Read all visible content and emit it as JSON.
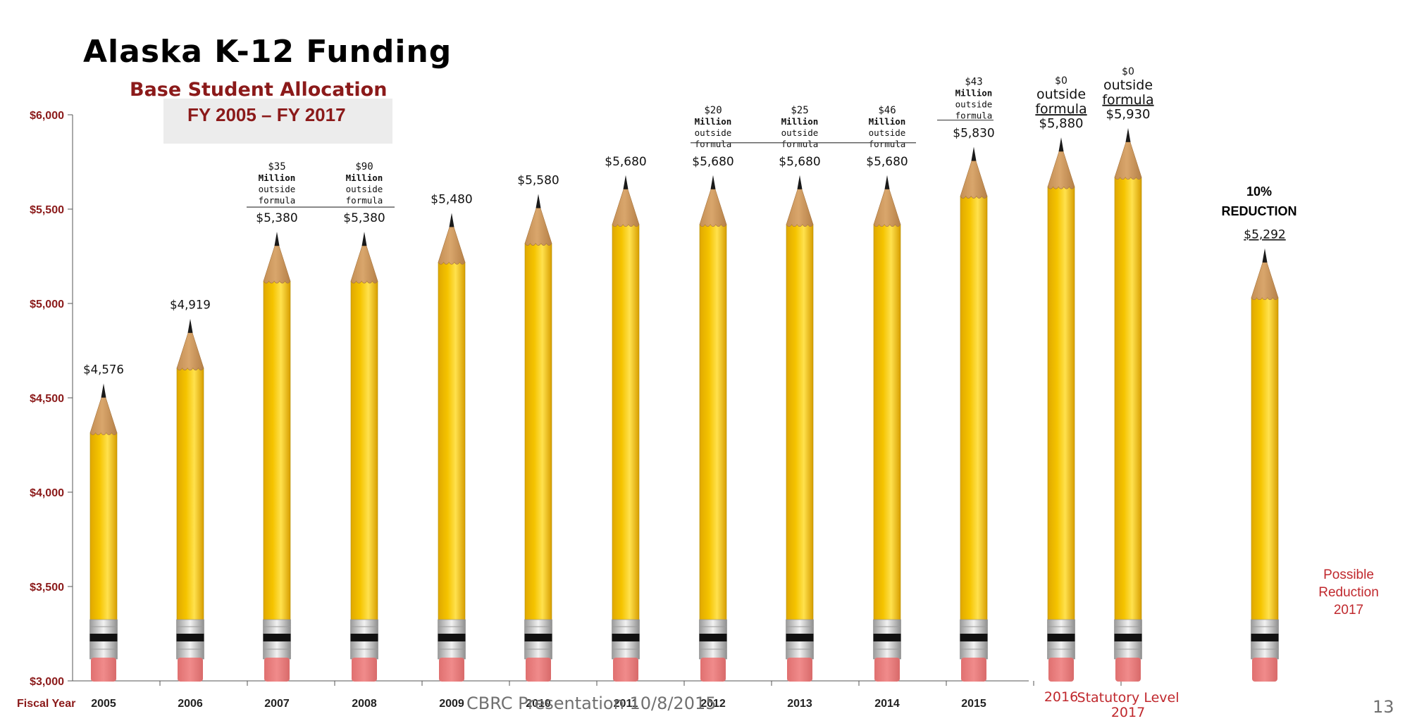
{
  "title": "Alaska K-12 Funding",
  "subtitle": "Base Student Allocation",
  "range_label": "FY 2005 – FY 2017",
  "footer": "CBRC Presentation 10/8/2015",
  "page_number": "13",
  "reduction_note": [
    "10%",
    "REDUCTION"
  ],
  "possible_note": [
    "Possible",
    "Reduction",
    "2017"
  ],
  "colors": {
    "axis_label": "#8b1a1a",
    "pencil_body": "#f5c400",
    "pencil_wood": "#d9a66c",
    "eraser": "#f08b8b",
    "possible_text": "#c0282d"
  },
  "chart_data": {
    "type": "bar",
    "xlabel": "Fiscal Year",
    "ylabel": "",
    "ylim": [
      3000,
      6000
    ],
    "yticks": [
      3000,
      3500,
      4000,
      4500,
      5000,
      5500,
      6000
    ],
    "ytick_labels": [
      "$3,000",
      "$3,500",
      "$4,000",
      "$4,500",
      "$5,000",
      "$5,500",
      "$6,000"
    ],
    "categories": [
      "2005",
      "2006",
      "2007",
      "2008",
      "2009",
      "2010",
      "2011",
      "2012",
      "2013",
      "2014",
      "2015",
      "2016",
      "Statutory Level 2017",
      "Possible Reduction 2017"
    ],
    "values": [
      4576,
      4919,
      5380,
      5380,
      5480,
      5580,
      5680,
      5680,
      5680,
      5680,
      5830,
      5880,
      5930,
      5292
    ],
    "value_labels": [
      "$4,576",
      "$4,919",
      "$5,380",
      "$5,380",
      "$5,480",
      "$5,580",
      "$5,680",
      "$5,680",
      "$5,680",
      "$5,680",
      "$5,830",
      "$5,880",
      "$5,930",
      "$5,292"
    ],
    "annotations": [
      {
        "category": "2007",
        "lines": [
          "$35",
          "Million",
          "outside",
          "formula"
        ]
      },
      {
        "category": "2008",
        "lines": [
          "$90",
          "Million",
          "outside",
          "formula"
        ]
      },
      {
        "category": "2012",
        "lines": [
          "$20",
          "Million",
          "outside",
          "formula"
        ]
      },
      {
        "category": "2013",
        "lines": [
          "$25",
          "Million",
          "outside",
          "formula"
        ]
      },
      {
        "category": "2014",
        "lines": [
          "$46",
          "Million",
          "outside",
          "formula"
        ]
      },
      {
        "category": "2015",
        "lines": [
          "$43",
          "Million",
          "outside",
          "formula"
        ]
      },
      {
        "category": "2016",
        "lines": [
          "$0",
          "outside",
          "formula"
        ]
      },
      {
        "category": "Statutory Level 2017",
        "lines": [
          "$0",
          "outside",
          "formula"
        ]
      }
    ],
    "grid": false
  }
}
